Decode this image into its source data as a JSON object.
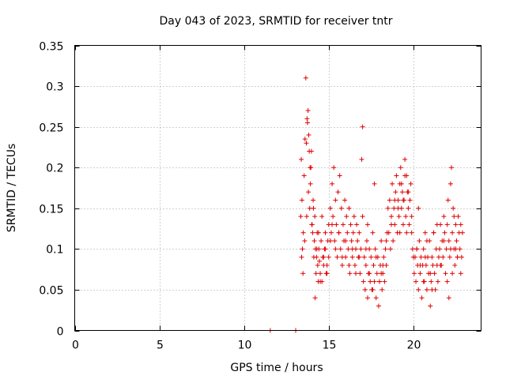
{
  "chart_data": {
    "type": "scatter",
    "title": "Day 043 of 2023, SRMTID for receiver tntr",
    "xlabel": "GPS time / hours",
    "ylabel": "SRMTID / TECUs",
    "xlim": [
      0,
      24
    ],
    "ylim": [
      0,
      0.35
    ],
    "x_ticks": [
      0,
      5,
      10,
      15,
      20
    ],
    "y_ticks": [
      0,
      0.05,
      0.1,
      0.15,
      0.2,
      0.25,
      0.3,
      0.35
    ],
    "x_tick_labels": [
      "0",
      "5",
      "10",
      "15",
      "20"
    ],
    "y_tick_labels": [
      "0",
      "0.05",
      "0.1",
      "0.15",
      "0.2",
      "0.25",
      "0.3",
      "0.35"
    ],
    "grid": true,
    "marker": "plus",
    "color": "#e00000",
    "series": [
      {
        "x": [
          11.55,
          13.05,
          13.35,
          13.38,
          13.42,
          13.45,
          13.5,
          13.55,
          13.6,
          13.65,
          13.68,
          13.72,
          13.75,
          13.78,
          13.82,
          13.85,
          13.88,
          13.92,
          13.95,
          13.98,
          14.02,
          14.05,
          14.08,
          14.12,
          14.15,
          14.18,
          14.22,
          14.25,
          14.28,
          14.32,
          14.35,
          14.38,
          14.42,
          14.45,
          14.5,
          14.55,
          14.6,
          14.65,
          14.7,
          14.75,
          14.8,
          14.85,
          14.9,
          14.95,
          15.0,
          13.4,
          13.48,
          13.58,
          13.7,
          13.8,
          13.9,
          14.0,
          14.1,
          14.2,
          14.3,
          14.4,
          14.5,
          14.6,
          14.7,
          14.8,
          14.9,
          15.0,
          15.1,
          15.1,
          15.15,
          15.2,
          15.25,
          15.3,
          15.35,
          15.4,
          15.45,
          15.5,
          15.55,
          15.6,
          15.65,
          15.7,
          15.75,
          15.8,
          15.85,
          15.9,
          15.95,
          16.0,
          16.05,
          16.1,
          16.15,
          16.2,
          16.25,
          16.3,
          16.35,
          16.4,
          16.45,
          16.5,
          16.55,
          16.6,
          16.65,
          16.7,
          16.75,
          16.8,
          16.85,
          16.9,
          16.95,
          17.0,
          15.2,
          15.4,
          15.6,
          15.8,
          16.0,
          16.2,
          16.4,
          16.6,
          16.8,
          17.0,
          17.05,
          17.1,
          17.15,
          17.2,
          17.25,
          17.3,
          17.35,
          17.4,
          17.45,
          17.5,
          17.55,
          17.6,
          17.65,
          17.7,
          17.75,
          17.8,
          17.85,
          17.9,
          17.95,
          18.0,
          18.05,
          18.1,
          18.15,
          18.2,
          18.25,
          18.3,
          18.35,
          18.4,
          18.45,
          18.5,
          17.2,
          17.4,
          17.6,
          17.8,
          18.0,
          18.2,
          18.4,
          17.3,
          17.7,
          18.1,
          18.55,
          18.6,
          18.65,
          18.7,
          18.75,
          18.8,
          18.85,
          18.9,
          18.95,
          19.0,
          19.05,
          19.1,
          19.15,
          19.2,
          19.25,
          19.3,
          19.35,
          19.4,
          19.45,
          19.5,
          19.55,
          19.6,
          19.65,
          19.7,
          19.75,
          19.8,
          19.85,
          19.9,
          19.95,
          20.0,
          18.7,
          18.9,
          19.1,
          19.3,
          19.5,
          19.7,
          19.9,
          19.2,
          19.4,
          19.6,
          20.05,
          20.1,
          20.15,
          20.2,
          20.25,
          20.3,
          20.35,
          20.4,
          20.45,
          20.5,
          20.55,
          20.6,
          20.65,
          20.7,
          20.75,
          20.8,
          20.85,
          20.9,
          20.95,
          21.0,
          21.05,
          21.1,
          21.15,
          21.2,
          21.25,
          21.3,
          21.35,
          21.4,
          21.45,
          21.5,
          20.2,
          20.4,
          20.6,
          20.8,
          21.0,
          21.2,
          21.4,
          20.3,
          20.7,
          21.1,
          21.55,
          21.6,
          21.65,
          21.7,
          21.75,
          21.8,
          21.85,
          21.9,
          21.95,
          22.0,
          22.05,
          22.1,
          22.15,
          22.2,
          22.25,
          22.3,
          22.35,
          22.4,
          22.45,
          22.5,
          22.55,
          22.6,
          22.65,
          22.7,
          22.75,
          22.8,
          22.85,
          22.9,
          21.6,
          21.8,
          22.0,
          22.2,
          22.4,
          22.6,
          22.8,
          22.1,
          22.3,
          22.5
        ],
        "y": [
          0.0,
          0.0,
          0.14,
          0.21,
          0.16,
          0.1,
          0.12,
          0.19,
          0.235,
          0.31,
          0.23,
          0.26,
          0.255,
          0.27,
          0.24,
          0.22,
          0.15,
          0.18,
          0.2,
          0.22,
          0.13,
          0.12,
          0.16,
          0.09,
          0.11,
          0.14,
          0.1,
          0.07,
          0.09,
          0.12,
          0.08,
          0.06,
          0.1,
          0.085,
          0.07,
          0.11,
          0.06,
          0.09,
          0.08,
          0.1,
          0.12,
          0.07,
          0.08,
          0.11,
          0.09,
          0.09,
          0.07,
          0.11,
          0.14,
          0.17,
          0.2,
          0.13,
          0.15,
          0.04,
          0.1,
          0.12,
          0.06,
          0.14,
          0.09,
          0.1,
          0.07,
          0.13,
          0.11,
          0.15,
          0.12,
          0.18,
          0.14,
          0.2,
          0.11,
          0.16,
          0.13,
          0.09,
          0.17,
          0.12,
          0.19,
          0.1,
          0.15,
          0.08,
          0.13,
          0.11,
          0.16,
          0.09,
          0.14,
          0.12,
          0.1,
          0.15,
          0.07,
          0.13,
          0.11,
          0.09,
          0.12,
          0.14,
          0.08,
          0.1,
          0.13,
          0.11,
          0.09,
          0.12,
          0.07,
          0.1,
          0.21,
          0.25,
          0.13,
          0.1,
          0.12,
          0.09,
          0.11,
          0.08,
          0.1,
          0.07,
          0.09,
          0.14,
          0.06,
          0.09,
          0.05,
          0.08,
          0.11,
          0.04,
          0.07,
          0.1,
          0.06,
          0.09,
          0.05,
          0.12,
          0.08,
          0.06,
          0.1,
          0.04,
          0.07,
          0.09,
          0.03,
          0.06,
          0.08,
          0.11,
          0.05,
          0.07,
          0.09,
          0.06,
          0.1,
          0.08,
          0.12,
          0.15,
          0.1,
          0.07,
          0.05,
          0.09,
          0.06,
          0.08,
          0.11,
          0.13,
          0.18,
          0.07,
          0.12,
          0.16,
          0.1,
          0.14,
          0.18,
          0.11,
          0.15,
          0.13,
          0.17,
          0.19,
          0.12,
          0.16,
          0.14,
          0.18,
          0.2,
          0.15,
          0.17,
          0.13,
          0.16,
          0.19,
          0.14,
          0.12,
          0.17,
          0.15,
          0.13,
          0.16,
          0.18,
          0.12,
          0.1,
          0.09,
          0.13,
          0.16,
          0.15,
          0.18,
          0.21,
          0.17,
          0.14,
          0.12,
          0.16,
          0.19,
          0.07,
          0.09,
          0.06,
          0.1,
          0.08,
          0.05,
          0.11,
          0.07,
          0.09,
          0.04,
          0.08,
          0.1,
          0.06,
          0.12,
          0.08,
          0.05,
          0.09,
          0.07,
          0.11,
          0.03,
          0.06,
          0.09,
          0.08,
          0.12,
          0.07,
          0.05,
          0.1,
          0.08,
          0.06,
          0.09,
          0.1,
          0.08,
          0.06,
          0.11,
          0.07,
          0.12,
          0.13,
          0.15,
          0.09,
          0.05,
          0.1,
          0.13,
          0.08,
          0.11,
          0.09,
          0.14,
          0.12,
          0.07,
          0.1,
          0.13,
          0.16,
          0.11,
          0.09,
          0.18,
          0.2,
          0.12,
          0.15,
          0.1,
          0.08,
          0.13,
          0.11,
          0.09,
          0.14,
          0.12,
          0.1,
          0.07,
          0.09,
          0.12,
          0.08,
          0.11,
          0.06,
          0.1,
          0.14,
          0.09,
          0.13,
          0.04,
          0.07,
          0.1
        ]
      }
    ]
  }
}
